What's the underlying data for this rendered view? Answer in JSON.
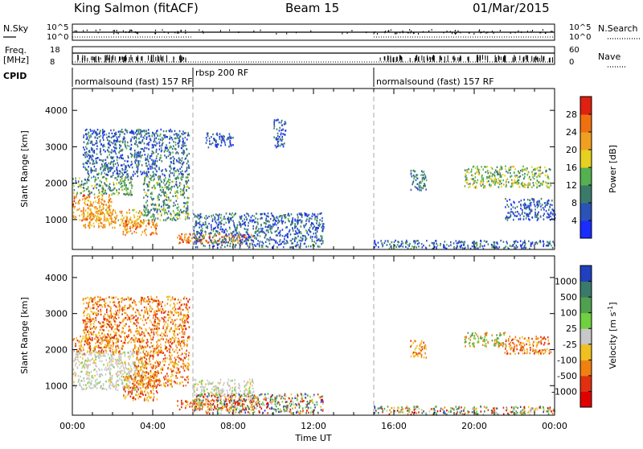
{
  "header": {
    "station": "King Salmon (fitACF)",
    "beam": "Beam 15",
    "date": "01/Mar/2015"
  },
  "status_panels": {
    "nsky_label": "N.Sky",
    "nsky_ticks": [
      "10^5",
      "10^0"
    ],
    "nsearch_label": "N.Search",
    "nsearch_ticks": [
      "10^5",
      "10^0"
    ],
    "freq_label_line1": "Freq.",
    "freq_label_line2": "[MHz]",
    "freq_ticks": [
      "18",
      "8"
    ],
    "nave_label": "Nave",
    "nave_ticks": [
      "60",
      "0"
    ],
    "cpid_label": "CPID",
    "cpid_segments": [
      {
        "label": "normalsound (fast) 157 RF",
        "start_hr": 0.0,
        "end_hr": 6.0
      },
      {
        "label": "rbsp 200 RF",
        "start_hr": 6.0,
        "end_hr": 15.0
      },
      {
        "label": "normalsound (fast) 157 RF",
        "start_hr": 15.0,
        "end_hr": 24.0
      }
    ]
  },
  "chart_data": [
    {
      "type": "heatmap",
      "panel": "power",
      "ylabel": "Slant Range [km]",
      "xlim_hr": [
        0,
        24
      ],
      "ylim": [
        180,
        4600
      ],
      "yticks": [
        1000,
        2000,
        3000,
        4000
      ],
      "colorbar": {
        "label": "Power [dB]",
        "ticks": [
          4,
          8,
          12,
          16,
          20,
          24,
          28
        ],
        "colors": [
          "#1a2cff",
          "#2a52b8",
          "#3a7a6a",
          "#55b050",
          "#e6d020",
          "#f0a020",
          "#f07010",
          "#e02010"
        ]
      },
      "regions": [
        {
          "t": [
            0.0,
            2.0
          ],
          "r": [
            1000,
            1700
          ],
          "level": 0.75
        },
        {
          "t": [
            0.5,
            3.5
          ],
          "r": [
            800,
            1300
          ],
          "level": 0.7
        },
        {
          "t": [
            2.5,
            4.2
          ],
          "r": [
            600,
            1000
          ],
          "level": 0.8
        },
        {
          "t": [
            0.0,
            3.0
          ],
          "r": [
            1700,
            2200
          ],
          "level": 0.35
        },
        {
          "t": [
            0.5,
            5.8
          ],
          "r": [
            2200,
            3500
          ],
          "level": 0.2
        },
        {
          "t": [
            3.5,
            5.8
          ],
          "r": [
            1000,
            2200
          ],
          "level": 0.35
        },
        {
          "t": [
            5.2,
            9.0
          ],
          "r": [
            350,
            650
          ],
          "level": 0.85
        },
        {
          "t": [
            6.0,
            12.5
          ],
          "r": [
            250,
            1200
          ],
          "level": 0.2
        },
        {
          "t": [
            6.6,
            8.0
          ],
          "r": [
            3000,
            3400
          ],
          "level": 0.15
        },
        {
          "t": [
            10.0,
            10.6
          ],
          "r": [
            3000,
            3800
          ],
          "level": 0.15
        },
        {
          "t": [
            15.0,
            24.0
          ],
          "r": [
            220,
            450
          ],
          "level": 0.2
        },
        {
          "t": [
            16.8,
            17.6
          ],
          "r": [
            1800,
            2400
          ],
          "level": 0.25
        },
        {
          "t": [
            19.5,
            23.8
          ],
          "r": [
            1900,
            2500
          ],
          "level": 0.45
        },
        {
          "t": [
            21.5,
            24.0
          ],
          "r": [
            1000,
            1600
          ],
          "level": 0.15
        }
      ]
    },
    {
      "type": "heatmap",
      "panel": "velocity",
      "xlabel": "Time UT",
      "ylabel": "Slant Range [km]",
      "xlim_hr": [
        0,
        24
      ],
      "xticks_hr": [
        0,
        4,
        8,
        12,
        16,
        20,
        24
      ],
      "xtick_labels": [
        "00:00",
        "04:00",
        "08:00",
        "12:00",
        "16:00",
        "20:00",
        "00:00"
      ],
      "ylim": [
        180,
        4600
      ],
      "yticks": [
        1000,
        2000,
        3000,
        4000
      ],
      "colorbar": {
        "label": "Velocity [m s^-1]",
        "ticks": [
          "1000",
          "500",
          "100",
          "25",
          "-25",
          "-100",
          "-500",
          "-1000"
        ],
        "colors": [
          "#2040c0",
          "#3a7a6a",
          "#50a050",
          "#70d040",
          "#c8c8c8",
          "#f0c020",
          "#f08010",
          "#e03010",
          "#e00000"
        ]
      },
      "regions": [
        {
          "t": [
            0.0,
            3.5
          ],
          "r": [
            900,
            2000
          ],
          "level": "gray"
        },
        {
          "t": [
            0.0,
            2.5
          ],
          "r": [
            1900,
            2400
          ],
          "level": "orange"
        },
        {
          "t": [
            2.5,
            4.2
          ],
          "r": [
            600,
            1300
          ],
          "level": "orange"
        },
        {
          "t": [
            0.5,
            5.8
          ],
          "r": [
            2200,
            3500
          ],
          "level": "orange"
        },
        {
          "t": [
            3.0,
            5.8
          ],
          "r": [
            1000,
            2200
          ],
          "level": "orange"
        },
        {
          "t": [
            5.2,
            9.0
          ],
          "r": [
            350,
            650
          ],
          "level": "orange"
        },
        {
          "t": [
            6.0,
            9.0
          ],
          "r": [
            700,
            1200
          ],
          "level": "gray"
        },
        {
          "t": [
            6.0,
            12.5
          ],
          "r": [
            250,
            800
          ],
          "level": "mixed"
        },
        {
          "t": [
            15.0,
            24.0
          ],
          "r": [
            220,
            450
          ],
          "level": "mixed"
        },
        {
          "t": [
            16.8,
            17.6
          ],
          "r": [
            1800,
            2300
          ],
          "level": "orange"
        },
        {
          "t": [
            19.5,
            21.5
          ],
          "r": [
            2100,
            2500
          ],
          "level": "green"
        },
        {
          "t": [
            21.5,
            23.8
          ],
          "r": [
            1900,
            2400
          ],
          "level": "orange"
        }
      ]
    }
  ]
}
